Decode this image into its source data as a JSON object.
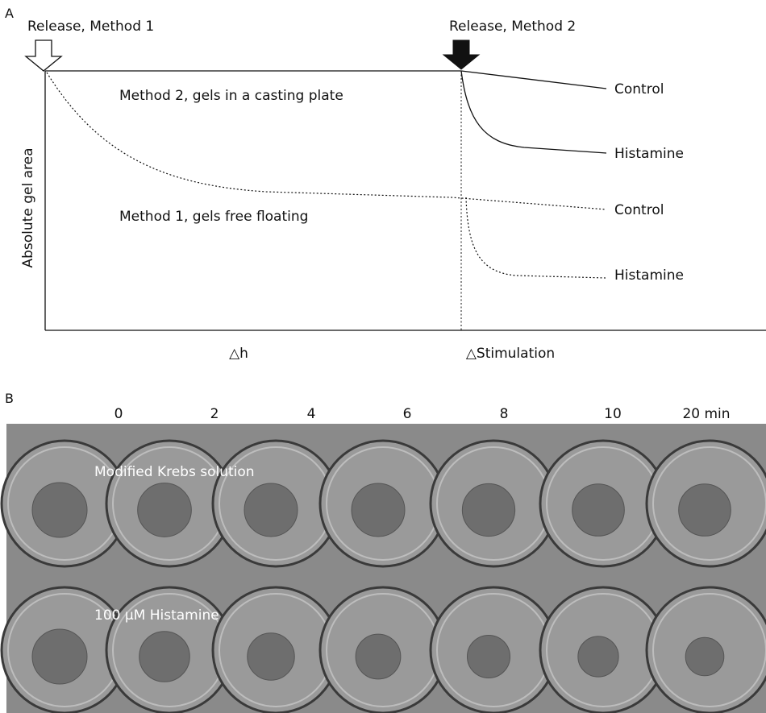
{
  "panel_a": {
    "letter": "A",
    "release_method_1": "Release, Method 1",
    "release_method_2": "Release, Method 2",
    "method_2_label": "Method 2, gels in a casting plate",
    "method_1_label": "Method 1, gels free floating",
    "y_axis_label": "Absolute gel area",
    "x_label_1": "△h",
    "x_label_2": "△Stimulation",
    "control_label_1": "Control",
    "histamine_label_1": "Histamine",
    "control_label_2": "Control",
    "histamine_label_2": "Histamine"
  },
  "panel_b": {
    "letter": "B",
    "time_labels": [
      "0",
      "2",
      "4",
      "6",
      "8",
      "10",
      "20 min"
    ],
    "row_1_label": "Modified Krebs solution",
    "row_2_label": "100 μM Histamine",
    "spot_fraction_krebs": [
      1.0,
      0.98,
      0.97,
      0.97,
      0.96,
      0.95,
      0.95
    ],
    "spot_fraction_histamine": [
      1.0,
      0.92,
      0.86,
      0.82,
      0.78,
      0.74,
      0.7
    ]
  },
  "colors": {
    "line": "#111111",
    "photo_background": "#8a8a8a",
    "dish_fill": "#9a9a9a",
    "gel_fill": "#6e6e6e"
  }
}
